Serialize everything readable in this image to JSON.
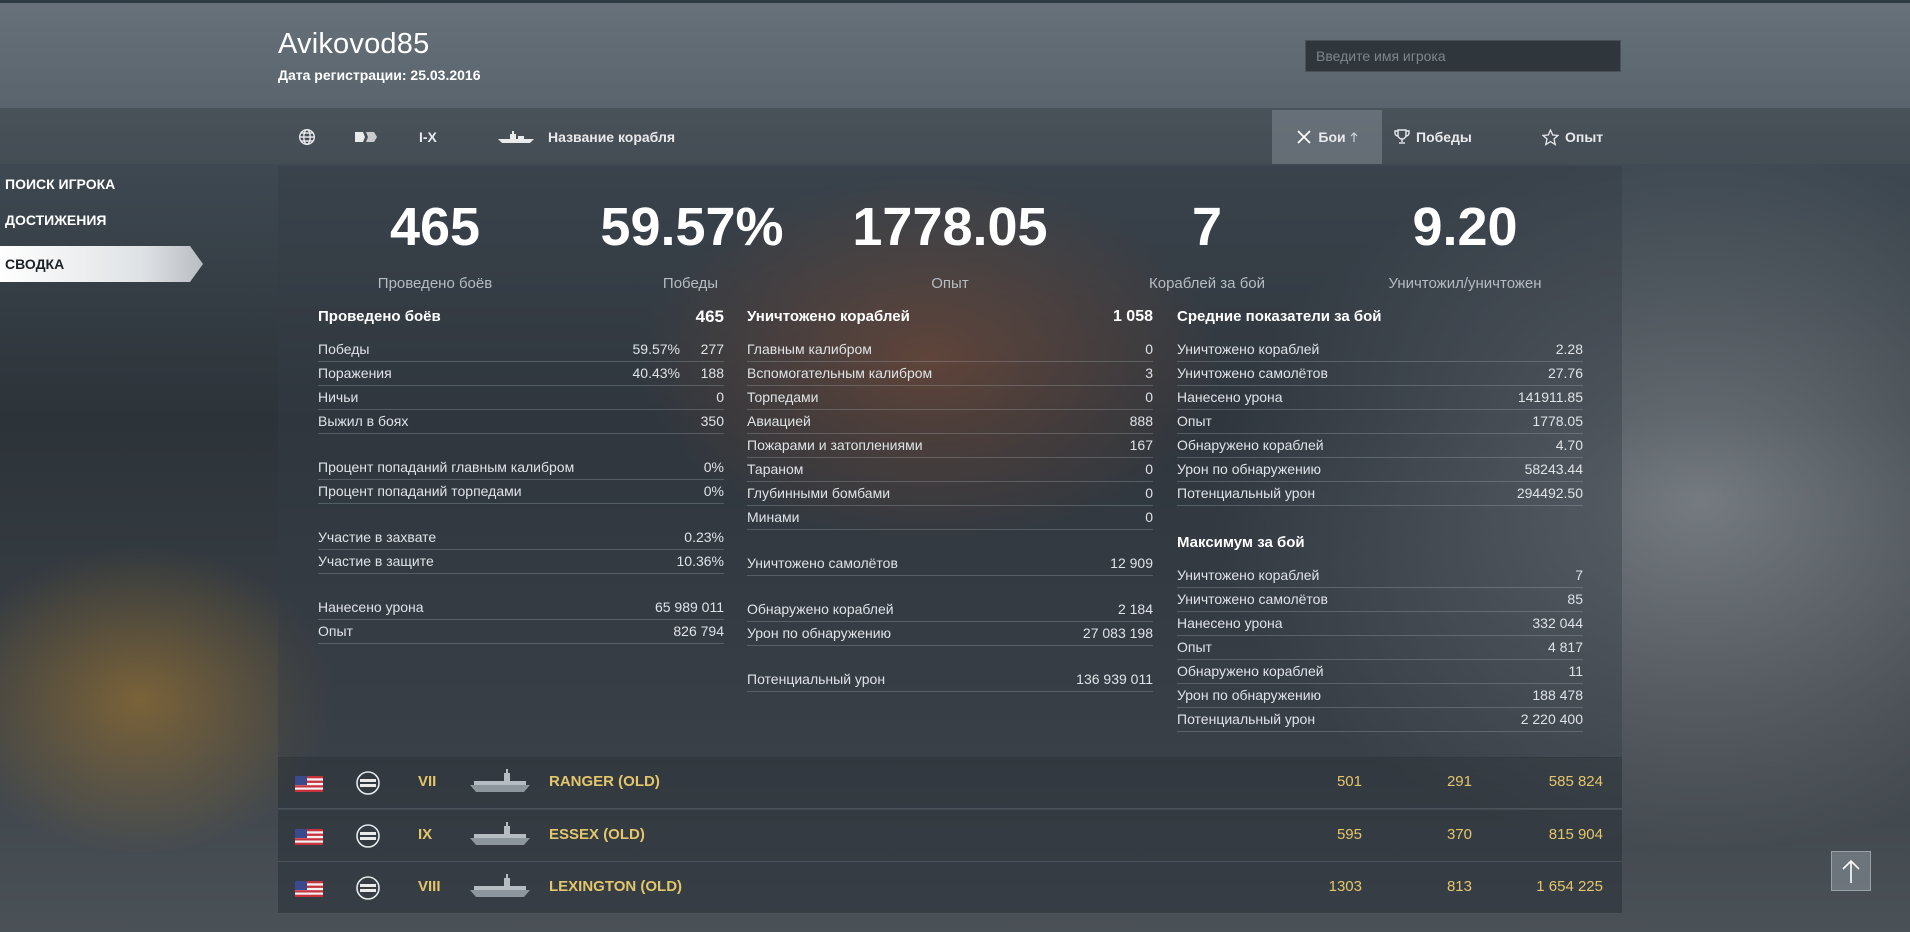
{
  "player": {
    "name": "Avikovod85",
    "reg_label": "Дата регистрации:",
    "reg_date": "25.03.2016"
  },
  "search": {
    "placeholder": "Введите имя игрока"
  },
  "filters": {
    "tier": "I-X",
    "ship_name": "Название корабля",
    "sort_battles": "Бои",
    "sort_wins": "Победы",
    "sort_exp": "Опыт",
    "icons": [
      "globe-icon",
      "ship-type-icon",
      "ship-silhouette-icon",
      "cross-swords-icon",
      "trophy-icon",
      "star-icon"
    ]
  },
  "sidebar": {
    "items": [
      {
        "label": "ПОИСК ИГРОКА"
      },
      {
        "label": "ДОСТИЖЕНИЯ"
      },
      {
        "label": "СВОДКА"
      }
    ]
  },
  "summary": [
    {
      "value": "465",
      "label": "Проведено боёв"
    },
    {
      "value": "59.57%",
      "label": "Победы"
    },
    {
      "value": "1778.05",
      "label": "Опыт"
    },
    {
      "value": "7",
      "label": "Кораблей за бой"
    },
    {
      "value": "9.20",
      "label": "Уничтожил/уничтожен"
    }
  ],
  "col1": {
    "title": "Проведено боёв",
    "title_value": "465",
    "wins_label": "Победы",
    "wins_pct": "59.57%",
    "wins_val": "277",
    "loss_label": "Поражения",
    "loss_pct": "40.43%",
    "loss_val": "188",
    "draws_label": "Ничьи",
    "draws_val": "0",
    "survived_label": "Выжил в боях",
    "survived_val": "350",
    "main_hit_label": "Процент попаданий главным калибром",
    "main_hit_val": "0%",
    "torp_hit_label": "Процент попаданий торпедами",
    "torp_hit_val": "0%",
    "capture_label": "Участие в захвате",
    "capture_val": "0.23%",
    "defense_label": "Участие в защите",
    "defense_val": "10.36%",
    "damage_label": "Нанесено урона",
    "damage_val": "65 989 011",
    "exp_label": "Опыт",
    "exp_val": "826 794"
  },
  "col2": {
    "title": "Уничтожено кораблей",
    "title_value": "1 058",
    "rows": [
      {
        "label": "Главным калибром",
        "value": "0"
      },
      {
        "label": "Вспомогательным калибром",
        "value": "3"
      },
      {
        "label": "Торпедами",
        "value": "0"
      },
      {
        "label": "Авиацией",
        "value": "888"
      },
      {
        "label": "Пожарами и затоплениями",
        "value": "167"
      },
      {
        "label": "Тараном",
        "value": "0"
      },
      {
        "label": "Глубинными бомбами",
        "value": "0"
      },
      {
        "label": "Минами",
        "value": "0"
      }
    ],
    "planes_label": "Уничтожено самолётов",
    "planes_val": "12 909",
    "spotted_label": "Обнаружено кораблей",
    "spotted_val": "2 184",
    "spot_dmg_label": "Урон по обнаружению",
    "spot_dmg_val": "27 083 198",
    "potential_label": "Потенциальный урон",
    "potential_val": "136 939 011"
  },
  "col3": {
    "avg_title": "Средние показатели за бой",
    "avg_rows": [
      {
        "label": "Уничтожено кораблей",
        "value": "2.28"
      },
      {
        "label": "Уничтожено самолётов",
        "value": "27.76"
      },
      {
        "label": "Нанесено урона",
        "value": "141911.85"
      },
      {
        "label": "Опыт",
        "value": "1778.05"
      },
      {
        "label": "Обнаружено кораблей",
        "value": "4.70"
      },
      {
        "label": "Урон по обнаружению",
        "value": "58243.44"
      },
      {
        "label": "Потенциальный урон",
        "value": "294492.50"
      }
    ],
    "max_title": "Максимум за бой",
    "max_rows": [
      {
        "label": "Уничтожено кораблей",
        "value": "7"
      },
      {
        "label": "Уничтожено самолётов",
        "value": "85"
      },
      {
        "label": "Нанесено урона",
        "value": "332 044"
      },
      {
        "label": "Опыт",
        "value": "4 817"
      },
      {
        "label": "Обнаружено кораблей",
        "value": "11"
      },
      {
        "label": "Урон по обнаружению",
        "value": "188 478"
      },
      {
        "label": "Потенциальный урон",
        "value": "2 220 400"
      }
    ]
  },
  "ships": [
    {
      "tier": "VII",
      "name": "RANGER (OLD)",
      "battles": "501",
      "wins": "291",
      "exp": "585 824"
    },
    {
      "tier": "IX",
      "name": "ESSEX (OLD)",
      "battles": "595",
      "wins": "370",
      "exp": "815 904"
    },
    {
      "tier": "VIII",
      "name": "LEXINGTON (OLD)",
      "battles": "1303",
      "wins": "813",
      "exp": "1 654 225"
    }
  ],
  "colors": {
    "gold": "#e4c66a",
    "panel": "#343c44"
  }
}
